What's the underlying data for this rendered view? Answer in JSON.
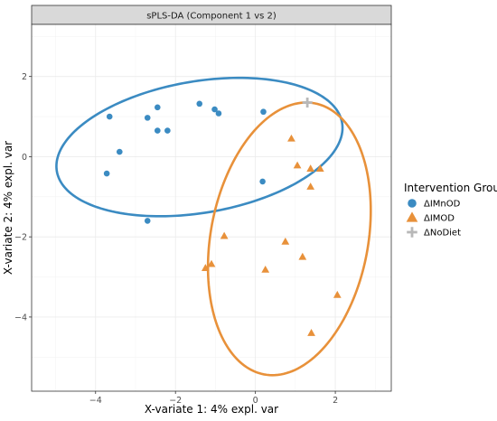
{
  "chart_data": {
    "type": "scatter",
    "title": "sPLS-DA (Component 1 vs 2)",
    "xlabel": "X-variate 1: 4% expl. var",
    "ylabel": "X-variate 2: 4% expl. var",
    "xlim": [
      -5.6,
      3.4
    ],
    "ylim": [
      -5.85,
      3.3
    ],
    "x_ticks": [
      -4,
      -2,
      0,
      2
    ],
    "y_ticks": [
      -4,
      -2,
      0,
      2
    ],
    "grid": true,
    "legend": {
      "title": "Intervention Group",
      "placement": "right"
    },
    "series": [
      {
        "name": "ΔIMnOD",
        "marker": "circle",
        "color": "#3b8bc2",
        "points": [
          [
            -3.65,
            1.0
          ],
          [
            -3.4,
            0.12
          ],
          [
            -3.72,
            -0.42
          ],
          [
            -2.7,
            0.97
          ],
          [
            -2.45,
            1.23
          ],
          [
            -2.45,
            0.65
          ],
          [
            -2.2,
            0.65
          ],
          [
            -1.4,
            1.32
          ],
          [
            -1.02,
            1.18
          ],
          [
            -0.92,
            1.08
          ],
          [
            0.2,
            1.12
          ],
          [
            0.18,
            -0.62
          ],
          [
            -2.7,
            -1.6
          ]
        ],
        "ellipse": {
          "cx": -1.4,
          "cy": 0.24,
          "rx": 3.62,
          "ry": 1.64,
          "angle_deg": 9.6
        }
      },
      {
        "name": "ΔIMOD",
        "marker": "triangle",
        "color": "#e8913a",
        "points": [
          [
            0.9,
            0.45
          ],
          [
            1.05,
            -0.22
          ],
          [
            1.38,
            -0.3
          ],
          [
            1.62,
            -0.3
          ],
          [
            1.38,
            -0.75
          ],
          [
            -0.78,
            -1.98
          ],
          [
            -1.1,
            -2.68
          ],
          [
            -1.25,
            -2.78
          ],
          [
            0.25,
            -2.82
          ],
          [
            0.75,
            -2.12
          ],
          [
            1.18,
            -2.5
          ],
          [
            2.05,
            -3.45
          ],
          [
            1.4,
            -4.4
          ]
        ],
        "ellipse": {
          "cx": 0.85,
          "cy": -2.05,
          "rx": 1.97,
          "ry": 3.44,
          "angle_deg": -10.6
        }
      },
      {
        "name": "ΔNoDiet",
        "marker": "plus",
        "color": "#b8b8b8",
        "points": [
          [
            1.3,
            1.35
          ]
        ]
      }
    ]
  }
}
